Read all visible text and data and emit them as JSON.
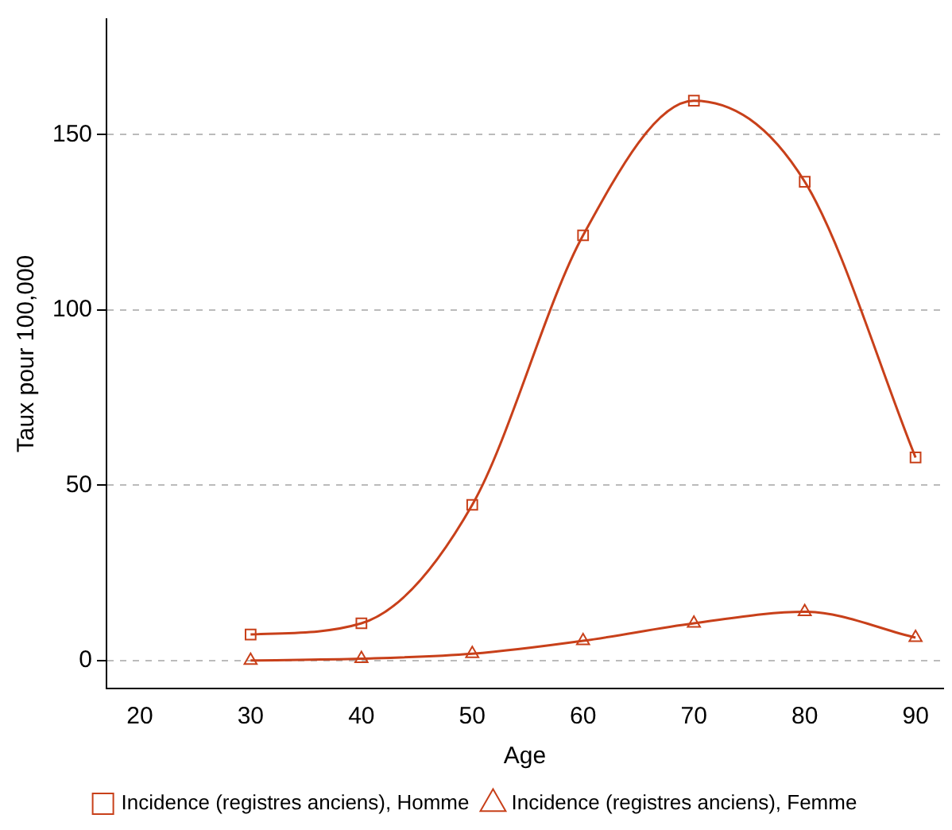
{
  "chart_data": {
    "type": "line",
    "xlabel": "Age",
    "ylabel": "Taux pour 100,000",
    "x": [
      30,
      40,
      50,
      60,
      70,
      80,
      90
    ],
    "series": [
      {
        "name": "Incidence (registres anciens), Homme",
        "color": "#c8401a",
        "marker": "square",
        "values": [
          7.4,
          10.6,
          44.4,
          121.3,
          159.7,
          136.6,
          57.9
        ]
      },
      {
        "name": "Incidence (registres anciens), Femme",
        "color": "#c8401a",
        "marker": "triangle",
        "values": [
          0,
          0.5,
          1.9,
          5.6,
          10.6,
          13.9,
          6.5
        ]
      }
    ],
    "xlim": [
      17,
      92.5
    ],
    "xticks": [
      20,
      30,
      40,
      50,
      60,
      70,
      80,
      90
    ],
    "ylim": [
      -8,
      183
    ],
    "yticks": [
      0,
      50,
      100,
      150
    ],
    "grid": "y",
    "legend": "bottom"
  }
}
